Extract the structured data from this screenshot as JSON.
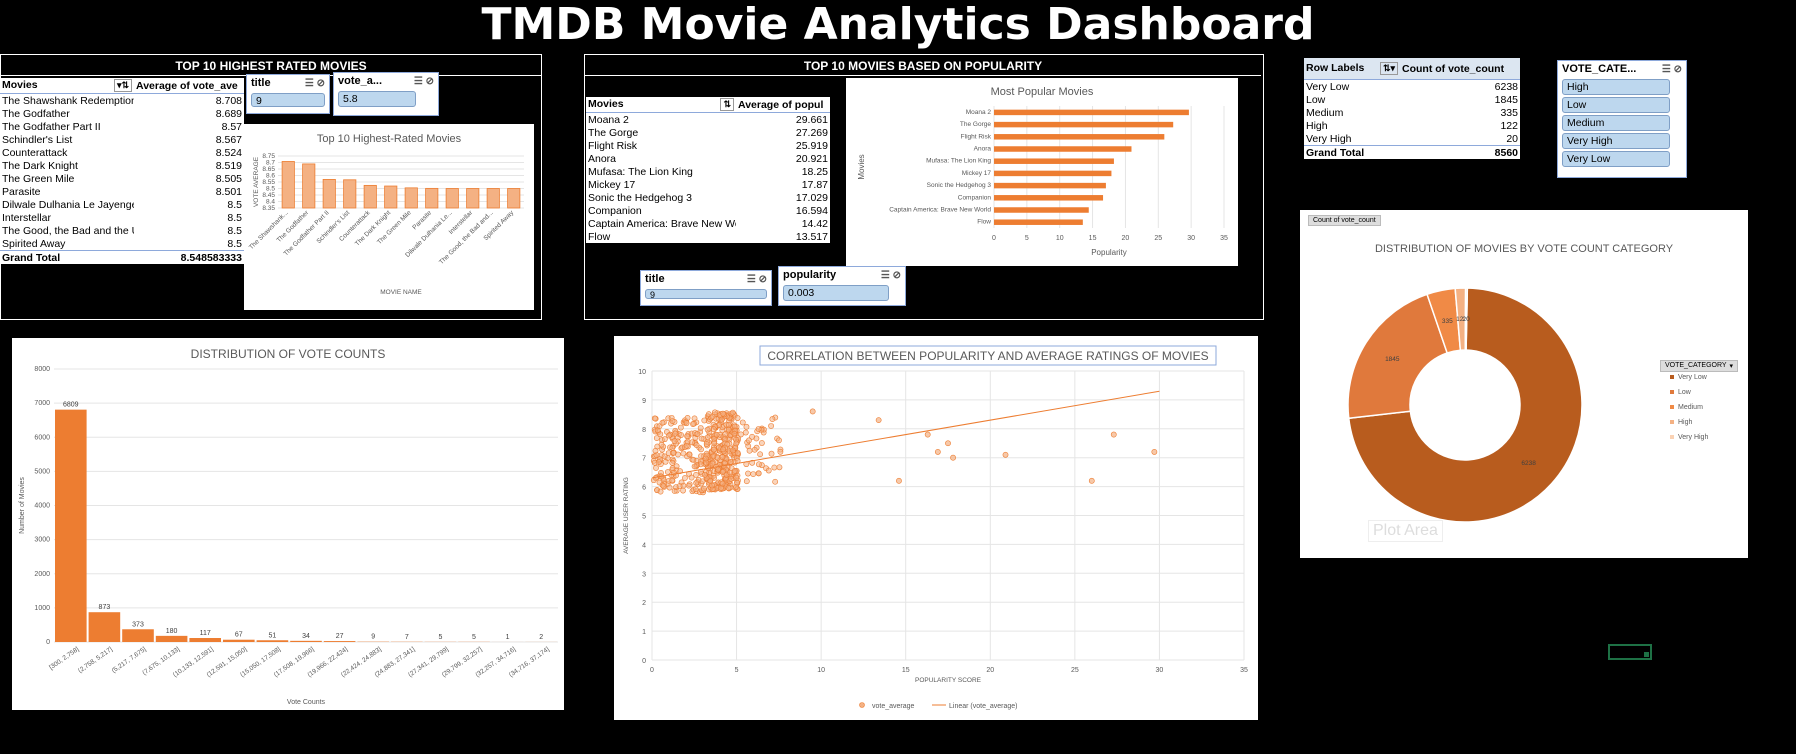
{
  "title": "TMDB Movie Analytics Dashboard",
  "top_rated": {
    "section_title": "TOP 10 HIGHEST RATED MOVIES",
    "col1": "Movies",
    "col2": "Average of vote_ave",
    "rows": [
      {
        "name": "The Shawshank Redemption",
        "value": "8.708"
      },
      {
        "name": "The Godfather",
        "value": "8.689"
      },
      {
        "name": "The Godfather Part II",
        "value": "8.57"
      },
      {
        "name": "Schindler's List",
        "value": "8.567"
      },
      {
        "name": "Counterattack",
        "value": "8.524"
      },
      {
        "name": "The Dark Knight",
        "value": "8.519"
      },
      {
        "name": "The Green Mile",
        "value": "8.505"
      },
      {
        "name": "Parasite",
        "value": "8.501"
      },
      {
        "name": "Dilwale Dulhania Le Jayenge",
        "value": "8.5"
      },
      {
        "name": "Interstellar",
        "value": "8.5"
      },
      {
        "name": "The Good, the Bad and the U",
        "value": "8.5"
      },
      {
        "name": "Spirited Away",
        "value": "8.5"
      }
    ],
    "total_label": "Grand Total",
    "total_value": "8.548583333",
    "slicer1_title": "title",
    "slicer1_value": "9",
    "slicer2_title": "vote_a...",
    "slicer2_value": "5.8"
  },
  "popular": {
    "section_title": "TOP 10 MOVIES BASED ON POPULARITY",
    "col1": "Movies",
    "col2": "Average of popul",
    "rows": [
      {
        "name": "Moana 2",
        "value": "29.661"
      },
      {
        "name": "The Gorge",
        "value": "27.269"
      },
      {
        "name": "Flight Risk",
        "value": "25.919"
      },
      {
        "name": "Anora",
        "value": "20.921"
      },
      {
        "name": "Mufasa: The Lion King",
        "value": "18.25"
      },
      {
        "name": "Mickey 17",
        "value": "17.87"
      },
      {
        "name": "Sonic the Hedgehog 3",
        "value": "17.029"
      },
      {
        "name": "Companion",
        "value": "16.594"
      },
      {
        "name": "Captain America: Brave New Wo",
        "value": "14.42"
      },
      {
        "name": "Flow",
        "value": "13.517"
      }
    ],
    "slicer1_title": "title",
    "slicer1_value": "9",
    "slicer2_title": "popularity",
    "slicer2_value": "0.003"
  },
  "vote_category_pivot": {
    "col1": "Row Labels",
    "col2": "Count of vote_count",
    "rows": [
      {
        "name": "Very Low",
        "value": "6238"
      },
      {
        "name": "Low",
        "value": "1845"
      },
      {
        "name": "Medium",
        "value": "335"
      },
      {
        "name": "High",
        "value": "122"
      },
      {
        "name": "Very High",
        "value": "20"
      }
    ],
    "total_label": "Grand Total",
    "total_value": "8560"
  },
  "vote_category_slicer": {
    "title": "VOTE_CATE...",
    "items": [
      "High",
      "Low",
      "Medium",
      "Very High",
      "Very Low"
    ]
  },
  "donut_chart": {
    "field_button": "Count of vote_count",
    "legend_button": "VOTE_CATEGORY",
    "plot_area_label": "Plot Area"
  },
  "accent_color": "#ed7d31",
  "chart_data": [
    {
      "type": "bar",
      "title": "Top 10 Highest-Rated Movies",
      "xlabel": "MOVIE NAME",
      "ylabel": "VOTE AVERAGE",
      "ylim": [
        8.35,
        8.75
      ],
      "yticks": [
        "8.35",
        "8.4",
        "8.45",
        "8.5",
        "8.55",
        "8.6",
        "8.65",
        "8.7",
        "8.75"
      ],
      "categories": [
        "The Shawshank...",
        "The Godfather",
        "The Godfather Part II",
        "Schindler's List",
        "Counterattack",
        "The Dark Knight",
        "The Green Mile",
        "Parasite",
        "Dilwale Dulhania Le...",
        "Interstellar",
        "The Good, the Bad and...",
        "Spirited Away"
      ],
      "values": [
        8.708,
        8.689,
        8.57,
        8.567,
        8.524,
        8.519,
        8.505,
        8.501,
        8.5,
        8.5,
        8.5,
        8.5
      ]
    },
    {
      "type": "bar",
      "orientation": "horizontal",
      "title": "Most Popular Movies",
      "xlabel": "Popularity",
      "ylabel": "Movies",
      "xlim": [
        0,
        35
      ],
      "xticks": [
        "0",
        "5",
        "10",
        "15",
        "20",
        "25",
        "30",
        "35"
      ],
      "categories": [
        "Moana 2",
        "The Gorge",
        "Flight Risk",
        "Anora",
        "Mufasa: The Lion King",
        "Mickey 17",
        "Sonic the Hedgehog 3",
        "Companion",
        "Captain America: Brave New World",
        "Flow"
      ],
      "values": [
        29.661,
        27.269,
        25.919,
        20.921,
        18.25,
        17.87,
        17.029,
        16.594,
        14.42,
        13.517
      ]
    },
    {
      "type": "pie",
      "title": "DISTRIBUTION OF MOVIES BY VOTE COUNT CATEGORY",
      "categories": [
        "Very Low",
        "Low",
        "Medium",
        "High",
        "Very High"
      ],
      "values": [
        6238,
        1845,
        335,
        122,
        20
      ],
      "colors": [
        "#b85c1e",
        "#e0793c",
        "#f08a46",
        "#f4b183",
        "#fad2b4"
      ],
      "data_labels": [
        "6238",
        "1845",
        "335",
        "122",
        "20"
      ],
      "legend": "right"
    },
    {
      "type": "bar",
      "title": "DISTRIBUTION OF VOTE COUNTS",
      "xlabel": "Vote Counts",
      "ylabel": "Number of Movies",
      "ylim": [
        0,
        8000
      ],
      "yticks": [
        "0",
        "1000",
        "2000",
        "3000",
        "4000",
        "5000",
        "6000",
        "7000",
        "8000"
      ],
      "categories": [
        "[300, 2,758]",
        "(2,758, 5,217]",
        "(5,217, 7,675]",
        "(7,675, 10,133]",
        "(10,133, 12,591]",
        "(12,591, 15,050]",
        "(15,050, 17,508]",
        "(17,508, 19,966]",
        "(19,966, 22,424]",
        "(22,424, 24,883]",
        "(24,883, 27,341]",
        "(27,341, 29,799]",
        "(29,799, 32,257]",
        "(32,257, 34,716]",
        "(34,716, 37,174]"
      ],
      "values": [
        6809,
        873,
        373,
        180,
        117,
        67,
        51,
        34,
        27,
        9,
        7,
        5,
        5,
        1,
        2
      ]
    },
    {
      "type": "scatter",
      "title": "CORRELATION BETWEEN POPULARITY AND AVERAGE RATINGS OF MOVIES",
      "xlabel": "POPULARITY SCORE",
      "ylabel": "AVERAGE USER RATING",
      "xlim": [
        0,
        35
      ],
      "ylim": [
        0,
        10
      ],
      "xticks": [
        "0",
        "5",
        "10",
        "15",
        "20",
        "25",
        "30",
        "35"
      ],
      "yticks": [
        "0",
        "1",
        "2",
        "3",
        "4",
        "5",
        "6",
        "7",
        "8",
        "9",
        "10"
      ],
      "series": [
        {
          "name": "vote_average",
          "outliers": [
            [
              9.5,
              8.6
            ],
            [
              13.4,
              8.3
            ],
            [
              14.6,
              6.2
            ],
            [
              16.3,
              7.8
            ],
            [
              16.9,
              7.2
            ],
            [
              17.5,
              7.5
            ],
            [
              17.8,
              7.0
            ],
            [
              20.9,
              7.1
            ],
            [
              26,
              6.2
            ],
            [
              27.3,
              7.8
            ],
            [
              29.7,
              7.2
            ]
          ]
        }
      ],
      "trendline": {
        "name": "Linear (vote_average)",
        "from": [
          0,
          6.3
        ],
        "to": [
          30,
          9.3
        ]
      }
    }
  ]
}
